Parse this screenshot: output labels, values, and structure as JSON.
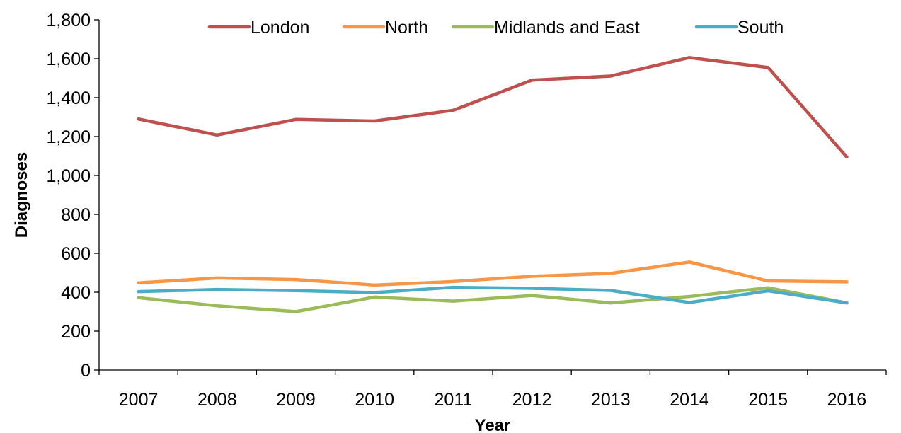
{
  "chart_data": {
    "type": "line",
    "title": "",
    "xlabel": "Year",
    "ylabel": "Diagnoses",
    "categories": [
      "2007",
      "2008",
      "2009",
      "2010",
      "2011",
      "2012",
      "2013",
      "2014",
      "2015",
      "2016"
    ],
    "ylim": [
      0,
      1800
    ],
    "yticks": [
      "0",
      "200",
      "400",
      "600",
      "800",
      "1,000",
      "1,200",
      "1,400",
      "1,600",
      "1,800"
    ],
    "grid": false,
    "legend_position": "top",
    "series": [
      {
        "name": "London",
        "color": "#C0504D",
        "values": [
          1290,
          1208,
          1288,
          1280,
          1335,
          1490,
          1511,
          1606,
          1555,
          1095
        ]
      },
      {
        "name": "North",
        "color": "#F79646",
        "values": [
          448,
          473,
          465,
          437,
          455,
          482,
          497,
          555,
          458,
          453
        ]
      },
      {
        "name": "Midlands and East",
        "color": "#9BBB59",
        "values": [
          372,
          330,
          300,
          375,
          354,
          383,
          345,
          378,
          423,
          345
        ]
      },
      {
        "name": "South",
        "color": "#4BACC6",
        "values": [
          403,
          414,
          408,
          398,
          425,
          420,
          409,
          347,
          407,
          345
        ]
      }
    ]
  }
}
